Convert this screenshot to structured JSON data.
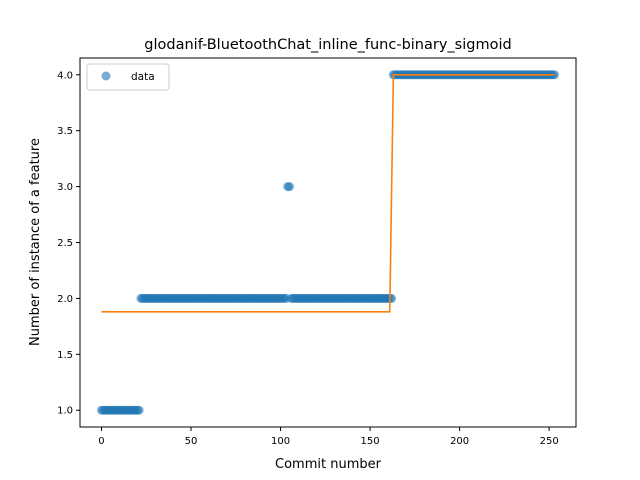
{
  "chart_data": {
    "type": "scatter",
    "title": "glodanif-BluetoothChat_inline_func-binary_sigmoid",
    "xlabel": "Commit number",
    "ylabel": "Number of instance of a feature",
    "xlim": [
      -12,
      265
    ],
    "ylim": [
      0.85,
      4.15
    ],
    "xticks": [
      0,
      50,
      100,
      150,
      200,
      250
    ],
    "yticks": [
      1.0,
      1.5,
      2.0,
      2.5,
      3.0,
      3.5,
      4.0
    ],
    "xtick_labels": [
      "0",
      "50",
      "100",
      "150",
      "200",
      "250"
    ],
    "ytick_labels": [
      "1.0",
      "1.5",
      "2.0",
      "2.5",
      "3.0",
      "3.5",
      "4.0"
    ],
    "grid": false,
    "legend": {
      "position": "top-left",
      "entries": [
        "data"
      ]
    },
    "series": [
      {
        "name": "data",
        "kind": "scatter",
        "color": "#1f77b4",
        "segments": [
          {
            "x_from": 0,
            "x_to": 21,
            "y": 1.0
          },
          {
            "x_from": 22,
            "x_to": 103,
            "y": 2.0
          },
          {
            "x_from": 104,
            "x_to": 105,
            "y": 3.0
          },
          {
            "x_from": 106,
            "x_to": 162,
            "y": 2.0
          },
          {
            "x_from": 163,
            "x_to": 253,
            "y": 4.0
          }
        ]
      },
      {
        "kind": "line",
        "color": "#ff7f0e",
        "points": [
          [
            0,
            1.88
          ],
          [
            161,
            1.88
          ],
          [
            163,
            4.0
          ],
          [
            253,
            4.0
          ]
        ]
      }
    ]
  }
}
